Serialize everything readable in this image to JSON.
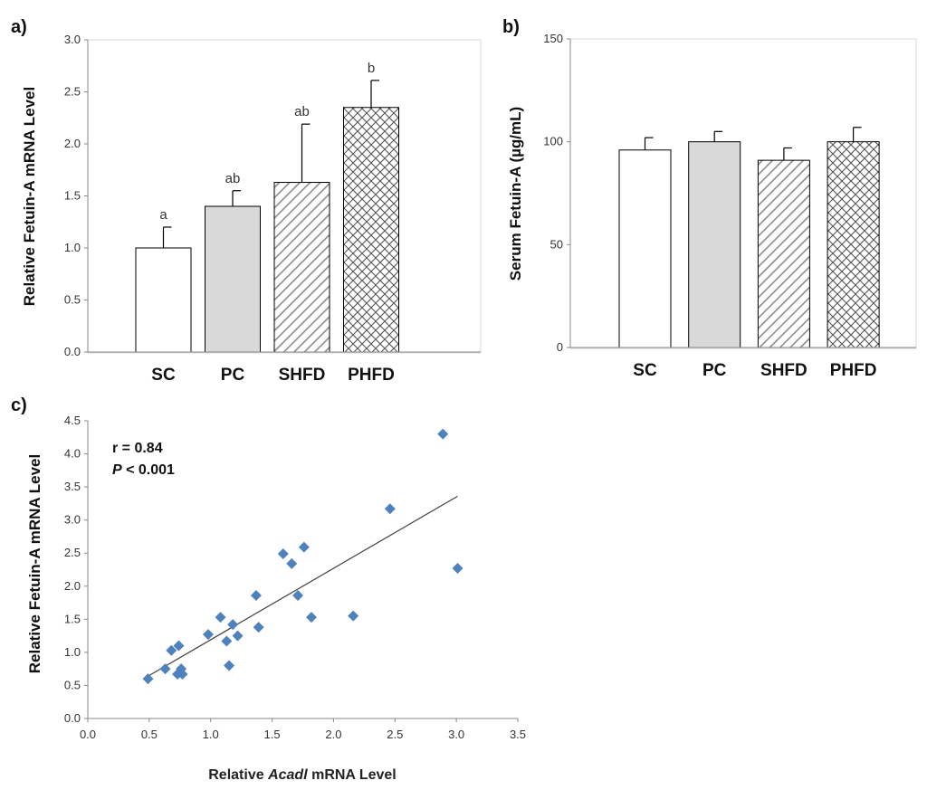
{
  "chart_data": [
    {
      "type": "bar",
      "panel_label": "a)",
      "ylabel": "Relative Fetuin-A mRNA Level",
      "xlabel": "",
      "ylim": [
        0,
        3.0
      ],
      "yticks": [
        "0.0",
        "0.5",
        "1.0",
        "1.5",
        "2.0",
        "2.5",
        "3.0"
      ],
      "categories": [
        "SC",
        "PC",
        "SHFD",
        "PHFD"
      ],
      "values": [
        1.0,
        1.4,
        1.63,
        2.35
      ],
      "errors": [
        0.2,
        0.15,
        0.56,
        0.26
      ],
      "significance": [
        "a",
        "ab",
        "ab",
        "b"
      ],
      "fills": [
        "white",
        "gray",
        "hatch",
        "crosshatch"
      ]
    },
    {
      "type": "bar",
      "panel_label": "b)",
      "ylabel": "Serum Fetuin-A (µg/mL)",
      "xlabel": "",
      "ylim": [
        0,
        150
      ],
      "yticks": [
        "0",
        "50",
        "100",
        "150"
      ],
      "categories": [
        "SC",
        "PC",
        "SHFD",
        "PHFD"
      ],
      "values": [
        96,
        100,
        91,
        100
      ],
      "errors": [
        6,
        5,
        6,
        7
      ],
      "fills": [
        "white",
        "gray",
        "hatch",
        "crosshatch"
      ]
    },
    {
      "type": "scatter",
      "panel_label": "c)",
      "ylabel": "Relative Fetuin-A mRNA Level",
      "xlabel_pre": "Relative ",
      "xlabel_gene": "Acadl",
      "xlabel_post": " mRNA Level",
      "xlim": [
        0,
        3.5
      ],
      "ylim": [
        0,
        4.5
      ],
      "xticks": [
        "0.0",
        "0.5",
        "1.0",
        "1.5",
        "2.0",
        "2.5",
        "3.0",
        "3.5"
      ],
      "yticks": [
        "0.0",
        "0.5",
        "1.0",
        "1.5",
        "2.0",
        "2.5",
        "3.0",
        "3.5",
        "4.0",
        "4.5"
      ],
      "points": [
        [
          0.49,
          0.6
        ],
        [
          0.63,
          0.75
        ],
        [
          0.68,
          1.03
        ],
        [
          0.73,
          0.67
        ],
        [
          0.74,
          1.1
        ],
        [
          0.76,
          0.75
        ],
        [
          0.77,
          0.67
        ],
        [
          0.98,
          1.27
        ],
        [
          1.08,
          1.53
        ],
        [
          1.13,
          1.17
        ],
        [
          1.15,
          0.8
        ],
        [
          1.18,
          1.42
        ],
        [
          1.22,
          1.25
        ],
        [
          1.37,
          1.86
        ],
        [
          1.39,
          1.38
        ],
        [
          1.59,
          2.49
        ],
        [
          1.66,
          2.34
        ],
        [
          1.71,
          1.86
        ],
        [
          1.76,
          2.59
        ],
        [
          1.82,
          1.53
        ],
        [
          2.16,
          1.55
        ],
        [
          2.46,
          3.17
        ],
        [
          2.89,
          4.3
        ],
        [
          3.01,
          2.27
        ]
      ],
      "trendline": {
        "x": [
          0.49,
          3.01
        ],
        "y": [
          0.64,
          3.36
        ]
      },
      "marker_color": "#4f81bd",
      "stat_r": "r = 0.84",
      "stat_p_italic": "P",
      "stat_p_rest": " < 0.001"
    }
  ]
}
